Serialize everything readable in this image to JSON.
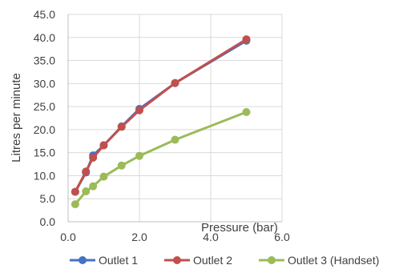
{
  "chart_data": {
    "type": "scatter",
    "title": "",
    "xlabel": "Pressure (bar)",
    "ylabel": "Litres per minute",
    "xlim": [
      0,
      6
    ],
    "ylim": [
      0,
      45
    ],
    "x_ticks": [
      "0.0",
      "2.0",
      "4.0",
      "6.0"
    ],
    "y_ticks": [
      "0.0",
      "5.0",
      "10.0",
      "15.0",
      "20.0",
      "25.0",
      "30.0",
      "35.0",
      "40.0",
      "45.0"
    ],
    "grid": true,
    "legend_position": "bottom",
    "series": [
      {
        "name": "Outlet 1",
        "color": "#4472c4",
        "x": [
          0.2,
          0.5,
          0.7,
          1.0,
          1.5,
          2.0,
          3.0,
          5.0
        ],
        "y": [
          6.5,
          10.7,
          14.4,
          16.6,
          20.7,
          24.5,
          30.1,
          39.3
        ]
      },
      {
        "name": "Outlet 2",
        "color": "#c0504d",
        "x": [
          0.2,
          0.5,
          0.7,
          1.0,
          1.5,
          2.0,
          3.0,
          5.0
        ],
        "y": [
          6.5,
          10.9,
          13.9,
          16.6,
          20.6,
          24.2,
          30.1,
          39.6
        ]
      },
      {
        "name": "Outlet 3 (Handset)",
        "color": "#9bbb59",
        "x": [
          0.2,
          0.5,
          0.7,
          1.0,
          1.5,
          2.0,
          3.0,
          5.0
        ],
        "y": [
          3.8,
          6.6,
          7.7,
          9.8,
          12.2,
          14.3,
          17.8,
          23.8
        ]
      }
    ]
  }
}
